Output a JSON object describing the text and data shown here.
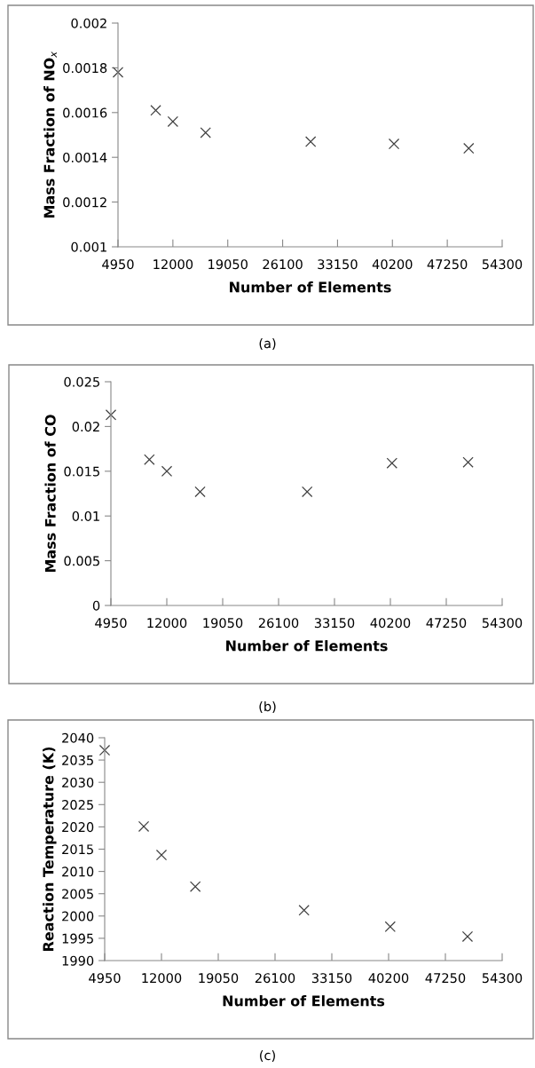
{
  "chart_data": [
    {
      "type": "scatter",
      "xlabel": "Number of Elements",
      "ylabel": "Mass Fraction of NO$_{x}$",
      "annotations": [
        "(a)"
      ],
      "marker": "cross",
      "grid": false,
      "legend": false,
      "xlim": [
        4950,
        54300
      ],
      "xticks": [
        4950,
        12000,
        19050,
        26100,
        33150,
        40200,
        47250,
        54300
      ],
      "ylim": [
        0.001,
        0.002
      ],
      "yticks": [
        0.001,
        0.0012,
        0.0014,
        0.0016,
        0.0018,
        0.002
      ],
      "series": [
        {
          "color": "#404040",
          "x": [
            4950,
            9800,
            12000,
            16200,
            29700,
            40400,
            50000
          ],
          "values": [
            0.00178,
            0.00161,
            0.00156,
            0.00151,
            0.00147,
            0.00146,
            0.00144
          ]
        }
      ]
    },
    {
      "type": "scatter",
      "xlabel": "Number of Elements",
      "ylabel": "Mass Fraction of CO",
      "annotations": [
        "(b)"
      ],
      "marker": "cross",
      "grid": false,
      "legend": false,
      "xlim": [
        4950,
        54300
      ],
      "xticks": [
        4950,
        12000,
        19050,
        26100,
        33150,
        40200,
        47250,
        54300
      ],
      "ylim": [
        0,
        0.025
      ],
      "yticks": [
        0,
        0.005,
        0.01,
        0.015,
        0.02,
        0.025
      ],
      "series": [
        {
          "color": "#404040",
          "x": [
            4950,
            9800,
            12000,
            16200,
            29700,
            40400,
            50000
          ],
          "values": [
            0.0213,
            0.0163,
            0.015,
            0.0127,
            0.0127,
            0.0159,
            0.016
          ]
        }
      ]
    },
    {
      "type": "scatter",
      "xlabel": "Number of Elements",
      "ylabel": "Reaction Temperature (K)",
      "annotations": [
        "(c)"
      ],
      "marker": "cross",
      "grid": false,
      "legend": false,
      "xlim": [
        4950,
        54300
      ],
      "xticks": [
        4950,
        12000,
        19050,
        26100,
        33150,
        40200,
        47250,
        54300
      ],
      "ylim": [
        1990,
        2040
      ],
      "yticks": [
        1990,
        1995,
        2000,
        2005,
        2010,
        2015,
        2020,
        2025,
        2030,
        2035,
        2040
      ],
      "series": [
        {
          "color": "#404040",
          "x": [
            4950,
            9800,
            12000,
            16200,
            29700,
            40400,
            50000
          ],
          "values": [
            2037.2,
            2020.1,
            2013.7,
            2006.6,
            2001.3,
            1997.6,
            1995.4
          ]
        }
      ]
    }
  ]
}
